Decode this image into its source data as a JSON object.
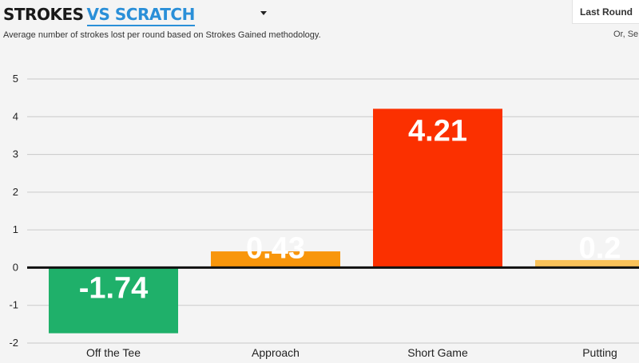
{
  "header": {
    "title_part1": "STROKES",
    "title_part2": "VS SCRATCH",
    "subtitle": "Average number of strokes lost per round based on Strokes Gained methodology.",
    "last_round_label": "Last Round",
    "or_select_label": "Or, Se"
  },
  "colors": {
    "title_accent": "#2a8fd8",
    "off_the_tee": "#1fb06a",
    "approach": "#f8960c",
    "short_game": "#fb3000",
    "putting": "#f9c25a"
  },
  "chart_data": {
    "type": "bar",
    "categories": [
      "Off the Tee",
      "Approach",
      "Short Game",
      "Putting"
    ],
    "values": [
      -1.74,
      0.43,
      4.21,
      0.2
    ],
    "data_labels": [
      "-1.74",
      "0.43",
      "4.21",
      "0.2"
    ],
    "bar_colors": [
      "#1fb06a",
      "#f8960c",
      "#fb3000",
      "#f9c25a"
    ],
    "yticks": [
      -2,
      -1,
      0,
      1,
      2,
      3,
      4,
      5
    ],
    "ylim": [
      -2,
      5
    ],
    "grid": true,
    "zero_line": true
  }
}
